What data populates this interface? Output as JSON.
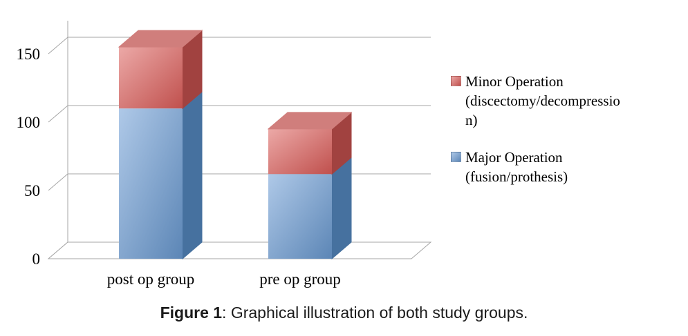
{
  "caption": {
    "figure_label": "Figure 1",
    "text": ": Graphical illustration of both study groups."
  },
  "chart_data": {
    "type": "bar",
    "subtype": "3d-stacked-column",
    "title": "",
    "categories": [
      "post op group",
      "pre op group"
    ],
    "series": [
      {
        "name": "Major Operation (fusion/prothesis)",
        "values": [
          110,
          62
        ],
        "color": {
          "front_light": "#AFC9E8",
          "front_dark": "#5C86B6",
          "side": "#46719F",
          "top": "#8FB2D9"
        }
      },
      {
        "name": "Minor Operation (discectomy/decompression)",
        "values": [
          45,
          33
        ],
        "color": {
          "front_light": "#ECA9A7",
          "front_dark": "#C0504D",
          "side": "#A14240",
          "top": "#D07E7C"
        }
      }
    ],
    "stacked": true,
    "ylim": [
      0,
      150
    ],
    "yticks": [
      0,
      50,
      100,
      150
    ],
    "xlabel": "",
    "ylabel": "",
    "legend_position": "right",
    "legend_order": [
      "Minor Operation (discectomy/decompression)",
      "Major Operation (fusion/prothesis)"
    ],
    "grid": true
  }
}
